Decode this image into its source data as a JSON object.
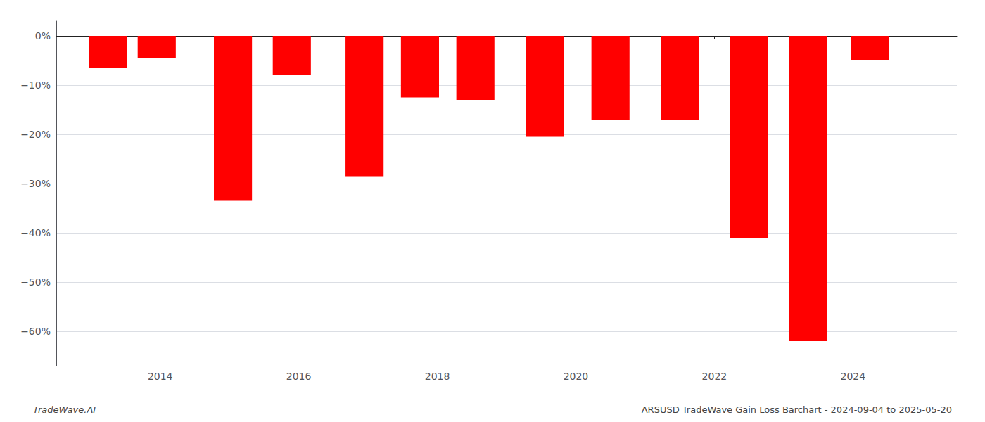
{
  "chart_data": {
    "type": "bar",
    "title": "ARSUSD TradeWave Gain Loss Barchart - 2024-09-04 to 2025-05-20",
    "annotations": [
      "TradeWave.AI"
    ],
    "x": [
      2013.25,
      2013.95,
      2015.05,
      2015.9,
      2016.95,
      2017.75,
      2018.55,
      2019.55,
      2020.5,
      2021.5,
      2022.5,
      2023.35,
      2024.25
    ],
    "values": [
      -6.5,
      -4.5,
      -33.5,
      -8.0,
      -28.5,
      -12.5,
      -13.0,
      -20.5,
      -17.0,
      -17.0,
      -41.0,
      -62.0,
      -5.0
    ],
    "color": "#ff0000",
    "xlim": [
      2012.5,
      2025.5
    ],
    "xticks": [
      2014,
      2016,
      2018,
      2020,
      2022,
      2024
    ],
    "ylim": [
      -67,
      3
    ],
    "yticks": [
      {
        "value": 0,
        "label": "0%"
      },
      {
        "value": -10,
        "label": "−10%"
      },
      {
        "value": -20,
        "label": "−20%"
      },
      {
        "value": -30,
        "label": "−30%"
      },
      {
        "value": -40,
        "label": "−40%"
      },
      {
        "value": -50,
        "label": "−50%"
      },
      {
        "value": -60,
        "label": "−60%"
      }
    ],
    "grid": true
  }
}
